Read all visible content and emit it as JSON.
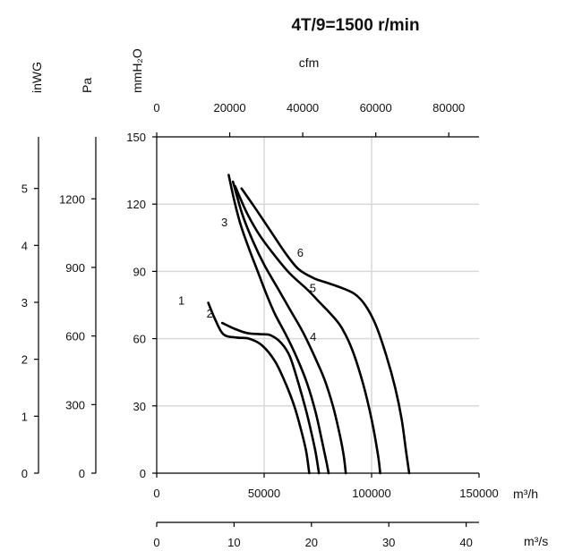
{
  "chart_data": {
    "type": "line",
    "title": "4T/9=1500 r/min",
    "x_primary": {
      "label": "m³/h",
      "range": [
        0,
        150000
      ],
      "ticks": [
        0,
        50000,
        100000,
        150000
      ],
      "tick_labels": [
        "0",
        "50000",
        "100000",
        "150000"
      ]
    },
    "x_cfm": {
      "label": "cfm",
      "ticks": [
        "0",
        "20000",
        "40000",
        "60000",
        "80000"
      ]
    },
    "x_m3s": {
      "label": "m³/s",
      "ticks": [
        "0",
        "10",
        "20",
        "30",
        "40"
      ]
    },
    "y_primary": {
      "label": "mmH₂O",
      "range": [
        0,
        150
      ],
      "ticks": [
        0,
        30,
        60,
        90,
        120,
        150
      ],
      "tick_labels": [
        "0",
        "30",
        "60",
        "90",
        "120",
        "150"
      ]
    },
    "y_pa": {
      "label": "Pa",
      "ticks": [
        "0",
        "300",
        "600",
        "900",
        "1200"
      ]
    },
    "y_inwg": {
      "label": "inWG",
      "ticks": [
        "0",
        "1",
        "2",
        "3",
        "4",
        "5"
      ]
    },
    "grid": true,
    "series": [
      {
        "name": "1",
        "points": [
          [
            24000,
            76
          ],
          [
            27000,
            69
          ],
          [
            31000,
            62
          ],
          [
            37000,
            60.5
          ],
          [
            43000,
            60
          ],
          [
            49000,
            57
          ],
          [
            55000,
            50
          ],
          [
            60000,
            40
          ],
          [
            64000,
            30
          ],
          [
            67000,
            20
          ],
          [
            69500,
            10
          ],
          [
            71000,
            0
          ]
        ]
      },
      {
        "name": "2",
        "points": [
          [
            30500,
            67
          ],
          [
            36000,
            64.5
          ],
          [
            42000,
            62.5
          ],
          [
            48000,
            62
          ],
          [
            53000,
            61.5
          ],
          [
            58000,
            58
          ],
          [
            62000,
            52
          ],
          [
            66000,
            40
          ],
          [
            69500,
            28
          ],
          [
            72000,
            18
          ],
          [
            74000,
            9
          ],
          [
            75500,
            0
          ]
        ]
      },
      {
        "name": "3",
        "points": [
          [
            33500,
            133
          ],
          [
            36000,
            122
          ],
          [
            39000,
            111
          ],
          [
            43000,
            100
          ],
          [
            47000,
            90
          ],
          [
            51000,
            80
          ],
          [
            55000,
            71
          ],
          [
            60000,
            62
          ],
          [
            65000,
            52
          ],
          [
            70000,
            40
          ],
          [
            74000,
            27
          ],
          [
            77000,
            14
          ],
          [
            79000,
            5
          ],
          [
            80000,
            0
          ]
        ]
      },
      {
        "name": "4",
        "points": [
          [
            35500,
            130
          ],
          [
            40000,
            115
          ],
          [
            45000,
            103
          ],
          [
            50000,
            93
          ],
          [
            56000,
            83
          ],
          [
            62000,
            73
          ],
          [
            68000,
            63
          ],
          [
            73000,
            53
          ],
          [
            78000,
            42
          ],
          [
            82000,
            30
          ],
          [
            85000,
            18
          ],
          [
            87000,
            8
          ],
          [
            88000,
            0
          ]
        ]
      },
      {
        "name": "5",
        "points": [
          [
            36500,
            128
          ],
          [
            42000,
            116
          ],
          [
            48000,
            106
          ],
          [
            55000,
            97
          ],
          [
            62000,
            89
          ],
          [
            70000,
            82
          ],
          [
            76000,
            76
          ],
          [
            81000,
            71
          ],
          [
            86000,
            65
          ],
          [
            91000,
            55
          ],
          [
            96000,
            40
          ],
          [
            100000,
            24
          ],
          [
            103000,
            8
          ],
          [
            104000,
            0
          ]
        ]
      },
      {
        "name": "6",
        "points": [
          [
            39500,
            127
          ],
          [
            46000,
            118
          ],
          [
            53000,
            108
          ],
          [
            60000,
            98
          ],
          [
            66000,
            91
          ],
          [
            73000,
            87
          ],
          [
            79000,
            85
          ],
          [
            85000,
            83
          ],
          [
            92000,
            80
          ],
          [
            97000,
            75
          ],
          [
            102000,
            66
          ],
          [
            107000,
            52
          ],
          [
            111000,
            38
          ],
          [
            114000,
            24
          ],
          [
            116000,
            10
          ],
          [
            117500,
            0
          ]
        ]
      }
    ]
  }
}
